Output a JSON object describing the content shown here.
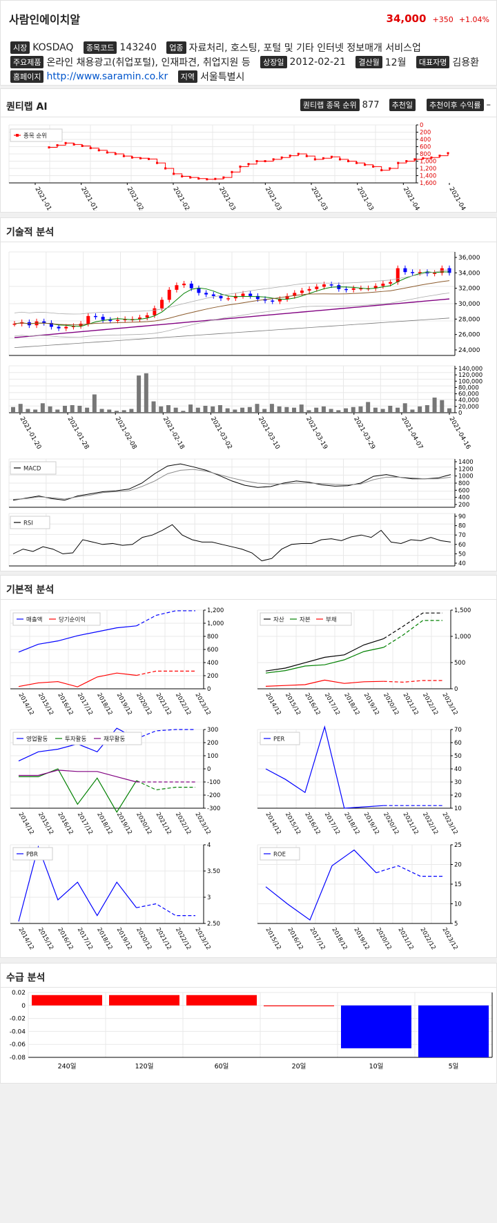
{
  "company": {
    "name": "사람인에이치알",
    "price": "34,000",
    "change": "+350",
    "change_pct": "+1.04%",
    "market_label": "시장",
    "market": "KOSDAQ",
    "code_label": "종목코드",
    "code": "143240",
    "industry_label": "업종",
    "industry": "자료처리, 호스팅, 포털 및 기타 인터넷 정보매개 서비스업",
    "products_label": "주요제품",
    "products": "온라인 채용광고(취업포털), 인재파견, 취업지원 등",
    "listed_label": "상장일",
    "listed": "2012-02-21",
    "fiscal_label": "결산월",
    "fiscal": "12월",
    "ceo_label": "대표자명",
    "ceo": "김용환",
    "homepage_label": "홈페이지",
    "homepage": "http://www.saramin.co.kr",
    "region_label": "지역",
    "region": "서울특별시"
  },
  "quantilab": {
    "title": "퀀티랩 AI",
    "rank_label": "퀀티랩 종목 순위",
    "rank": "877",
    "rec_date_label": "추천일",
    "return_label": "추천이후 수익률",
    "return_value": "–",
    "legend": "종목 순위",
    "dates": [
      "2021-01-20",
      "2021-01-28",
      "2021-02-08",
      "2021-02-18",
      "2021-03-02",
      "2021-03-10",
      "2021-03-19",
      "2021-03-29",
      "2021-04-07",
      "2021-04-16"
    ],
    "yticks": [
      "0",
      "200",
      "400",
      "600",
      "800",
      "1,000",
      "1,200",
      "1,400",
      "1,600"
    ]
  },
  "technical": {
    "title": "기술적 분석",
    "price_ticks": [
      "36,000",
      "34,000",
      "32,000",
      "30,000",
      "28,000",
      "26,000",
      "24,000"
    ],
    "volume_ticks": [
      "140,000",
      "120,000",
      "100,000",
      "80,000",
      "60,000",
      "40,000",
      "20,000",
      "0"
    ],
    "dates": [
      "2021-01-20",
      "2021-01-28",
      "2021-02-08",
      "2021-02-18",
      "2021-03-02",
      "2021-03-10",
      "2021-03-19",
      "2021-03-29",
      "2021-04-07",
      "2021-04-16"
    ],
    "macd_legend": "MACD",
    "macd_ticks": [
      "1400",
      "1200",
      "1000",
      "800",
      "600",
      "400",
      "200"
    ],
    "rsi_legend": "RSI",
    "rsi_ticks": [
      "90",
      "80",
      "70",
      "60",
      "50",
      "40"
    ]
  },
  "fundamental": {
    "title": "기본적 분석",
    "years": [
      "2014/12",
      "2015/12",
      "2016/12",
      "2017/12",
      "2018/12",
      "2019/12",
      "2020/12",
      "2021/12",
      "2022/12",
      "2023/12"
    ],
    "years_roe": [
      "2015/12",
      "2016/12",
      "2017/12",
      "2018/12",
      "2019/12",
      "2020/12",
      "2021/12",
      "2022/12",
      "2023/12"
    ],
    "sales_legend": [
      "매출액",
      "당기순이익"
    ],
    "sales_ticks": [
      "1,200",
      "1,000",
      "800",
      "600",
      "400",
      "200",
      "0"
    ],
    "asset_legend": [
      "자산",
      "자본",
      "부채"
    ],
    "asset_ticks": [
      "1,500",
      "1,000",
      "500",
      "0"
    ],
    "cf_legend": [
      "영업활동",
      "투자활동",
      "재무활동"
    ],
    "cf_ticks": [
      "300",
      "200",
      "100",
      "0",
      "-100",
      "-200",
      "-300"
    ],
    "per_legend": "PER",
    "per_ticks": [
      "70",
      "60",
      "50",
      "40",
      "30",
      "20",
      "10"
    ],
    "pbr_legend": "PBR",
    "pbr_ticks": [
      "4",
      "3.50",
      "3",
      "2.50"
    ],
    "roe_legend": "ROE",
    "roe_ticks": [
      "25",
      "20",
      "15",
      "10",
      "5"
    ]
  },
  "supply": {
    "title": "수급 분석",
    "yticks": [
      "0.02",
      "0",
      "-0.02",
      "-0.04",
      "-0.06",
      "-0.08"
    ]
  },
  "colors": {
    "up": "#ff0000",
    "down": "#0000ff",
    "ma_green": "#008000",
    "ma_purple": "#800080"
  },
  "chart_data": [
    {
      "type": "line",
      "title": "퀀티랩 AI",
      "series": [
        {
          "name": "종목 순위",
          "values": [
            620,
            560,
            500,
            540,
            580,
            640,
            700,
            760,
            800,
            860,
            900,
            920,
            940,
            1050,
            1200,
            1350,
            1420,
            1450,
            1480,
            1500,
            1490,
            1450,
            1300,
            1150,
            1080,
            1000,
            1000,
            950,
            900,
            850,
            800,
            860,
            950,
            920,
            880,
            950,
            1000,
            1050,
            1100,
            1150,
            1250,
            1200,
            1050,
            1000,
            950,
            920,
            900,
            850,
            780
          ]
        }
      ],
      "ylim": [
        0,
        1600
      ],
      "inverted": true
    },
    {
      "type": "bar",
      "title": "수급 분석",
      "categories": [
        "240일",
        "120일",
        "60일",
        "20일",
        "10일",
        "5일"
      ],
      "values": [
        0.016,
        0.016,
        0.016,
        0.0,
        -0.066,
        -0.08
      ],
      "ylim": [
        -0.08,
        0.02
      ]
    },
    {
      "type": "line",
      "title": "매출액/당기순이익",
      "categories": [
        "2014/12",
        "2015/12",
        "2016/12",
        "2017/12",
        "2018/12",
        "2019/12",
        "2020/12",
        "2021/12",
        "2022/12",
        "2023/12"
      ],
      "series": [
        {
          "name": "매출액",
          "values": [
            560,
            680,
            730,
            810,
            870,
            930,
            960,
            1120,
            1190,
            1190
          ]
        },
        {
          "name": "당기순이익",
          "values": [
            35,
            90,
            110,
            30,
            180,
            240,
            205,
            270,
            270,
            270
          ]
        }
      ]
    },
    {
      "type": "line",
      "title": "자산/자본/부채",
      "categories": [
        "2014/12",
        "2015/12",
        "2016/12",
        "2017/12",
        "2018/12",
        "2019/12",
        "2020/12",
        "2021/12",
        "2022/12",
        "2023/12"
      ],
      "series": [
        {
          "name": "자산",
          "values": [
            430,
            500,
            630,
            760,
            820,
            1060,
            1210,
            1510,
            1830,
            1830
          ]
        },
        {
          "name": "자본",
          "values": [
            380,
            440,
            550,
            580,
            700,
            900,
            1000,
            1300,
            1650,
            1650
          ]
        },
        {
          "name": "부채",
          "values": [
            60,
            80,
            100,
            210,
            130,
            170,
            180,
            160,
            200,
            200
          ]
        }
      ]
    },
    {
      "type": "line",
      "title": "현금흐름",
      "categories": [
        "2014/12",
        "2015/12",
        "2016/12",
        "2017/12",
        "2018/12",
        "2019/12",
        "2020/12",
        "2021/12",
        "2022/12",
        "2023/12"
      ],
      "series": [
        {
          "name": "영업활동",
          "values": [
            60,
            130,
            150,
            190,
            130,
            310,
            230,
            290,
            300,
            300
          ]
        },
        {
          "name": "투자활동",
          "values": [
            -60,
            -60,
            0,
            -270,
            -70,
            -330,
            -90,
            -160,
            -140,
            -140
          ]
        },
        {
          "name": "재무활동",
          "values": [
            -50,
            -50,
            -10,
            -20,
            -20,
            -60,
            -100,
            -100,
            -100,
            -100
          ]
        }
      ]
    },
    {
      "type": "line",
      "title": "PER",
      "categories": [
        "2014/12",
        "2015/12",
        "2016/12",
        "2017/12",
        "2018/12",
        "2019/12",
        "2020/12",
        "2021/12",
        "2022/12",
        "2023/12"
      ],
      "series": [
        {
          "name": "PER",
          "values": [
            40,
            32,
            22,
            72,
            10,
            11,
            12,
            12,
            12,
            12
          ]
        }
      ]
    },
    {
      "type": "line",
      "title": "PBR",
      "categories": [
        "2014/12",
        "2015/12",
        "2016/12",
        "2017/12",
        "2018/12",
        "2019/12",
        "2020/12",
        "2021/12",
        "2022/12",
        "2023/12"
      ],
      "series": [
        {
          "name": "PBR",
          "values": [
            2.05,
            3.95,
            2.6,
            3.05,
            2.2,
            3.05,
            2.4,
            2.5,
            2.2,
            2.2
          ]
        }
      ]
    },
    {
      "type": "line",
      "title": "ROE",
      "categories": [
        "2015/12",
        "2016/12",
        "2017/12",
        "2018/12",
        "2019/12",
        "2020/12",
        "2021/12",
        "2022/12",
        "2023/12"
      ],
      "series": [
        {
          "name": "ROE",
          "values": [
            14,
            9,
            4.5,
            20,
            24.5,
            18,
            20,
            17,
            17
          ]
        }
      ]
    }
  ]
}
